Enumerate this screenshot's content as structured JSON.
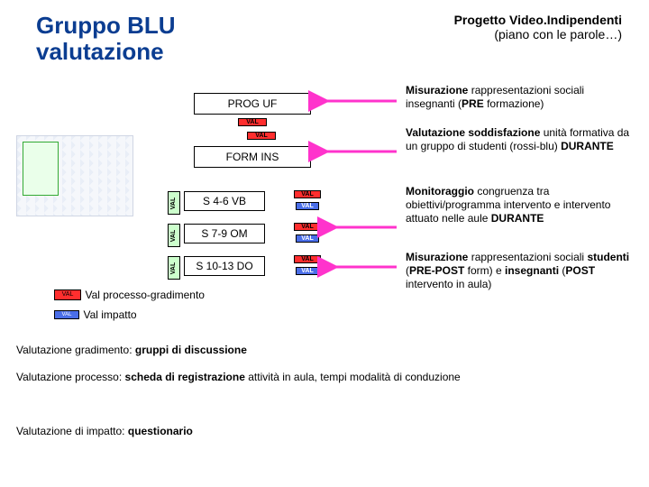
{
  "title_line1": "Gruppo BLU",
  "title_line2": "valutazione",
  "subtitle_line1": "Progetto Video.Indipendenti",
  "subtitle_line2": "(piano con le parole…)",
  "boxes": {
    "prog_uf": "PROG UF",
    "val_small": "VAL",
    "form_ins": "FORM INS",
    "row1": "S 4-6 VB",
    "row2": "S 7-9 OM",
    "row3": "S 10-13 DO",
    "valbar": "VAL",
    "val_red": "VAL",
    "val_blue": "VAL"
  },
  "paras": {
    "p1_html": "<b>Misurazione</b> rappresentazioni sociali insegnanti (<b>PRE</b> formazione)",
    "p2_html": "<b>Valutazione soddisfazione</b> unità formativa da un gruppo di studenti (rossi-blu) <b>DURANTE</b>",
    "p3_html": "<b>Monitoraggio</b> congruenza tra obiettivi/programma intervento e intervento attuato nelle aule <b>DURANTE</b>",
    "p4_html": "<b>Misurazione</b> rappresentazioni sociali <b>studenti</b> (<b>PRE-POST</b> form) e <b>insegnanti</b> (<b>POST</b> intervento in aula)"
  },
  "legend": {
    "red_label": "VAL",
    "blue_label": "VAL",
    "red_text": "Val processo-gradimento",
    "blue_text": "Val impatto"
  },
  "bottom1_html": "Valutazione gradimento: <b>gruppi di discussione</b>",
  "bottom2_html": "Valutazione processo: <b>scheda di registrazione</b> attività in aula, tempi modalità di conduzione",
  "bottom3_html": "Valutazione di impatto: <b>questionario</b>",
  "colors": {
    "arrow": "#ff33cc",
    "title": "#0b3d91",
    "valbar_bg": "#ccffcc",
    "val_red": "#ff2e2e",
    "val_blue": "#4a6ee8"
  }
}
